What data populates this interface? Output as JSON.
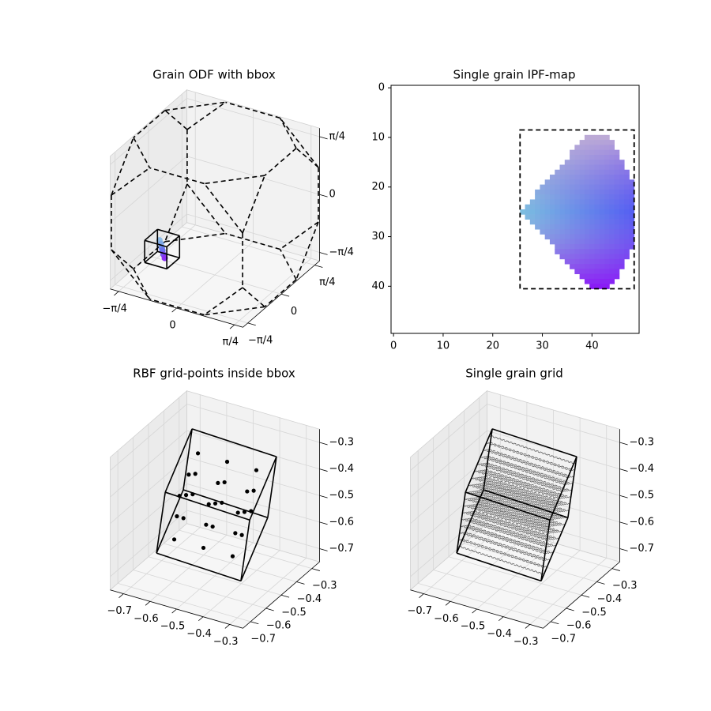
{
  "chart_data": [
    {
      "type": "scatter3d",
      "title": "Grain ODF with bbox",
      "xlim": [
        -0.9,
        0.9
      ],
      "ylim": [
        -0.9,
        0.9
      ],
      "zlim": [
        -0.9,
        0.9
      ],
      "xticks": [
        {
          "value": -0.785,
          "label": "−π/4"
        },
        0,
        {
          "value": 0.785,
          "label": "π/4"
        }
      ],
      "yticks": [
        {
          "value": -0.785,
          "label": "−π/4"
        },
        0,
        {
          "value": 0.785,
          "label": "π/4"
        }
      ],
      "zticks": [
        {
          "value": -0.785,
          "label": "−π/4"
        },
        0,
        {
          "value": 0.785,
          "label": "π/4"
        }
      ],
      "grid": true,
      "fz_color": "#000000",
      "bbox_color": "#000000",
      "fz_vertices": [
        [
          0.89,
          0.89,
          0.37
        ],
        [
          0.89,
          0.89,
          -0.37
        ],
        [
          0.89,
          -0.89,
          0.37
        ],
        [
          0.89,
          -0.89,
          -0.37
        ],
        [
          -0.89,
          0.89,
          0.37
        ],
        [
          -0.89,
          0.89,
          -0.37
        ],
        [
          -0.89,
          -0.89,
          0.37
        ],
        [
          -0.89,
          -0.89,
          -0.37
        ],
        [
          0.89,
          0.37,
          0.89
        ],
        [
          0.89,
          0.37,
          -0.89
        ],
        [
          0.89,
          -0.37,
          0.89
        ],
        [
          0.89,
          -0.37,
          -0.89
        ],
        [
          -0.89,
          0.37,
          0.89
        ],
        [
          -0.89,
          0.37,
          -0.89
        ],
        [
          -0.89,
          -0.37,
          0.89
        ],
        [
          -0.89,
          -0.37,
          -0.89
        ],
        [
          0.37,
          0.89,
          0.89
        ],
        [
          0.37,
          0.89,
          -0.89
        ],
        [
          0.37,
          -0.89,
          0.89
        ],
        [
          0.37,
          -0.89,
          -0.89
        ],
        [
          -0.37,
          0.89,
          0.89
        ],
        [
          -0.37,
          0.89,
          -0.89
        ],
        [
          -0.37,
          -0.89,
          0.89
        ],
        [
          -0.37,
          -0.89,
          -0.89
        ]
      ],
      "bbox_corners": [
        [
          -0.6,
          -0.61,
          -0.6
        ],
        [
          -0.3,
          -0.61,
          -0.6
        ],
        [
          -0.6,
          -0.31,
          -0.6
        ],
        [
          -0.3,
          -0.31,
          -0.6
        ],
        [
          -0.6,
          -0.61,
          -0.3
        ],
        [
          -0.3,
          -0.61,
          -0.3
        ],
        [
          -0.6,
          -0.31,
          -0.3
        ],
        [
          -0.3,
          -0.31,
          -0.3
        ]
      ],
      "points": [
        [
          -0.52,
          -0.4,
          -0.38
        ],
        [
          -0.49,
          -0.42,
          -0.41
        ],
        [
          -0.46,
          -0.45,
          -0.44
        ],
        [
          -0.44,
          -0.47,
          -0.46
        ],
        [
          -0.41,
          -0.5,
          -0.49
        ],
        [
          -0.38,
          -0.52,
          -0.52
        ]
      ],
      "point_colors": [
        "#8fbce6",
        "#7ea8e6",
        "#6f8fea",
        "#6a72ee",
        "#7652f0",
        "#8a2ef2"
      ]
    },
    {
      "type": "image",
      "title": "Single grain IPF-map",
      "xlim": [
        -0.5,
        49.5
      ],
      "ylim": [
        49.5,
        -0.5
      ],
      "xticks": [
        0,
        10,
        20,
        30,
        40
      ],
      "yticks": [
        0,
        10,
        20,
        30,
        40
      ],
      "grain_rows": [
        [
          10,
          39,
          43
        ],
        [
          11,
          38,
          44
        ],
        [
          12,
          37,
          44
        ],
        [
          13,
          36,
          45
        ],
        [
          14,
          36,
          45
        ],
        [
          15,
          35,
          46
        ],
        [
          16,
          34,
          46
        ],
        [
          17,
          33,
          47
        ],
        [
          18,
          32,
          47
        ],
        [
          19,
          31,
          48
        ],
        [
          20,
          30,
          48
        ],
        [
          21,
          29,
          48
        ],
        [
          22,
          29,
          48
        ],
        [
          23,
          28,
          48
        ],
        [
          24,
          27,
          48
        ],
        [
          25,
          26,
          48
        ],
        [
          26,
          27,
          48
        ],
        [
          27,
          28,
          48
        ],
        [
          28,
          29,
          48
        ],
        [
          29,
          30,
          48
        ],
        [
          30,
          31,
          48
        ],
        [
          31,
          32,
          48
        ],
        [
          32,
          33,
          48
        ],
        [
          33,
          33,
          47
        ],
        [
          34,
          34,
          47
        ],
        [
          35,
          35,
          46
        ],
        [
          36,
          36,
          46
        ],
        [
          37,
          37,
          45
        ],
        [
          38,
          38,
          45
        ],
        [
          39,
          39,
          44
        ],
        [
          40,
          40,
          43
        ]
      ],
      "corner_colors": {
        "top": "#bcaad6",
        "left": "#7cbde0",
        "right": "#5560f2",
        "bottom": "#8a1cf6"
      },
      "bbox": {
        "x": [
          25.5,
          48.5
        ],
        "y": [
          8.5,
          40.5
        ]
      }
    },
    {
      "type": "scatter3d",
      "title": "RBF grid-points inside bbox",
      "xlim": [
        -0.75,
        -0.25
      ],
      "ylim": [
        -0.75,
        -0.25
      ],
      "zlim": [
        -0.75,
        -0.25
      ],
      "xticks": [
        {
          "value": -0.7,
          "label": "−0.7"
        },
        {
          "value": -0.6,
          "label": "−0.6"
        },
        {
          "value": -0.5,
          "label": "−0.5"
        },
        {
          "value": -0.4,
          "label": "−0.4"
        },
        {
          "value": -0.3,
          "label": "−0.3"
        }
      ],
      "yticks": [
        {
          "value": -0.7,
          "label": "−0.7"
        },
        {
          "value": -0.6,
          "label": "−0.6"
        },
        {
          "value": -0.5,
          "label": "−0.5"
        },
        {
          "value": -0.4,
          "label": "−0.4"
        },
        {
          "value": -0.3,
          "label": "−0.3"
        }
      ],
      "zticks": [
        {
          "value": -0.7,
          "label": "−0.7"
        },
        {
          "value": -0.6,
          "label": "−0.6"
        },
        {
          "value": -0.5,
          "label": "−0.5"
        },
        {
          "value": -0.4,
          "label": "−0.4"
        },
        {
          "value": -0.3,
          "label": "−0.3"
        }
      ],
      "grid": true,
      "bbox_color": "#000000",
      "point_color": "#000000",
      "bbox_corners": [
        [
          -0.65,
          -0.389,
          -0.295
        ],
        [
          -0.332,
          -0.389,
          -0.308
        ],
        [
          -0.683,
          -0.389,
          -0.534
        ],
        [
          -0.365,
          -0.389,
          -0.547
        ],
        [
          -0.65,
          -0.564,
          -0.446
        ],
        [
          -0.332,
          -0.564,
          -0.459
        ],
        [
          -0.683,
          -0.564,
          -0.685
        ],
        [
          -0.365,
          -0.564,
          -0.698
        ]
      ],
      "points": [
        [
          -0.61,
          -0.42,
          -0.36
        ],
        [
          -0.61,
          -0.48,
          -0.41
        ],
        [
          -0.61,
          -0.54,
          -0.46
        ],
        [
          -0.62,
          -0.42,
          -0.44
        ],
        [
          -0.62,
          -0.48,
          -0.49
        ],
        [
          -0.62,
          -0.54,
          -0.54
        ],
        [
          -0.63,
          -0.42,
          -0.52
        ],
        [
          -0.63,
          -0.48,
          -0.58
        ],
        [
          -0.63,
          -0.54,
          -0.63
        ],
        [
          -0.5,
          -0.42,
          -0.36
        ],
        [
          -0.5,
          -0.48,
          -0.41
        ],
        [
          -0.5,
          -0.54,
          -0.46
        ],
        [
          -0.51,
          -0.42,
          -0.44
        ],
        [
          -0.51,
          -0.48,
          -0.49
        ],
        [
          -0.51,
          -0.54,
          -0.54
        ],
        [
          -0.52,
          -0.42,
          -0.52
        ],
        [
          -0.52,
          -0.48,
          -0.58
        ],
        [
          -0.52,
          -0.54,
          -0.63
        ],
        [
          -0.39,
          -0.42,
          -0.36
        ],
        [
          -0.39,
          -0.48,
          -0.41
        ],
        [
          -0.39,
          -0.54,
          -0.46
        ],
        [
          -0.4,
          -0.42,
          -0.44
        ],
        [
          -0.4,
          -0.48,
          -0.49
        ],
        [
          -0.4,
          -0.54,
          -0.54
        ],
        [
          -0.41,
          -0.42,
          -0.52
        ],
        [
          -0.41,
          -0.48,
          -0.58
        ],
        [
          -0.41,
          -0.54,
          -0.63
        ]
      ]
    },
    {
      "type": "grid3d",
      "title": "Single grain grid",
      "xlim": [
        -0.75,
        -0.25
      ],
      "ylim": [
        -0.75,
        -0.25
      ],
      "zlim": [
        -0.75,
        -0.25
      ],
      "xticks": [
        {
          "value": -0.7,
          "label": "−0.7"
        },
        {
          "value": -0.6,
          "label": "−0.6"
        },
        {
          "value": -0.5,
          "label": "−0.5"
        },
        {
          "value": -0.4,
          "label": "−0.4"
        },
        {
          "value": -0.3,
          "label": "−0.3"
        }
      ],
      "yticks": [
        {
          "value": -0.7,
          "label": "−0.7"
        },
        {
          "value": -0.6,
          "label": "−0.6"
        },
        {
          "value": -0.5,
          "label": "−0.5"
        },
        {
          "value": -0.4,
          "label": "−0.4"
        },
        {
          "value": -0.3,
          "label": "−0.3"
        }
      ],
      "zticks": [
        {
          "value": -0.7,
          "label": "−0.7"
        },
        {
          "value": -0.6,
          "label": "−0.6"
        },
        {
          "value": -0.5,
          "label": "−0.5"
        },
        {
          "value": -0.4,
          "label": "−0.4"
        },
        {
          "value": -0.3,
          "label": "−0.3"
        }
      ],
      "grid": true,
      "bbox_color": "#000000",
      "grid_color": "#555555",
      "bbox_corners": [
        [
          -0.65,
          -0.389,
          -0.295
        ],
        [
          -0.332,
          -0.389,
          -0.308
        ],
        [
          -0.683,
          -0.389,
          -0.534
        ],
        [
          -0.365,
          -0.389,
          -0.547
        ],
        [
          -0.65,
          -0.564,
          -0.446
        ],
        [
          -0.332,
          -0.564,
          -0.459
        ],
        [
          -0.683,
          -0.564,
          -0.685
        ],
        [
          -0.365,
          -0.564,
          -0.698
        ]
      ]
    }
  ]
}
